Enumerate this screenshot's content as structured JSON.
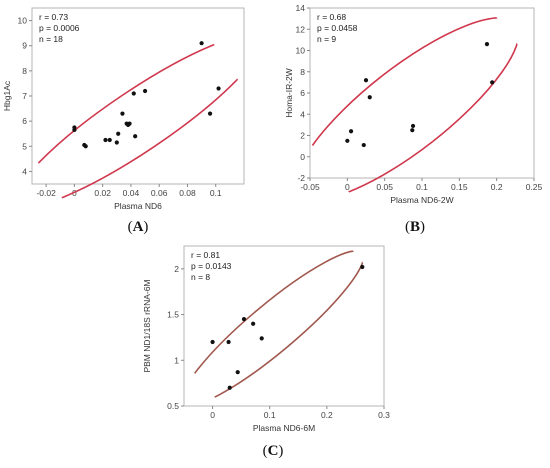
{
  "chart_data": [
    {
      "id": "A",
      "type": "scatter",
      "caption": "A",
      "xlabel": "Plasma ND6",
      "ylabel": "Hbg1Ac",
      "xlim": [
        -0.03,
        0.12
      ],
      "ylim": [
        3.5,
        10.5
      ],
      "xticks": [
        -0.02,
        0,
        0.02,
        0.04,
        0.06,
        0.08,
        0.1
      ],
      "xticklabels": [
        "-0.02",
        "0",
        "0.02",
        "0.04",
        "0.06",
        "0.08",
        "0.1"
      ],
      "yticks": [
        4,
        5,
        6,
        7,
        8,
        9,
        10
      ],
      "yticklabels": [
        "4",
        "5",
        "6",
        "7",
        "8",
        "9",
        "10"
      ],
      "stats": [
        "r = 0.73",
        "p = 0.0006",
        "n = 18"
      ],
      "ellipse_color": "#d0384e",
      "ellipse": {
        "cx": 0.045,
        "cy": 6.0,
        "rx": 0.104,
        "ry": 1.2,
        "angle_deg": 34
      },
      "points": [
        {
          "x": 0.0,
          "y": 5.75
        },
        {
          "x": 0.0,
          "y": 5.65
        },
        {
          "x": 0.007,
          "y": 5.05
        },
        {
          "x": 0.008,
          "y": 5.0
        },
        {
          "x": 0.022,
          "y": 5.25
        },
        {
          "x": 0.025,
          "y": 5.25
        },
        {
          "x": 0.03,
          "y": 5.15
        },
        {
          "x": 0.031,
          "y": 5.5
        },
        {
          "x": 0.034,
          "y": 6.3
        },
        {
          "x": 0.037,
          "y": 5.9
        },
        {
          "x": 0.039,
          "y": 5.9
        },
        {
          "x": 0.042,
          "y": 7.1
        },
        {
          "x": 0.043,
          "y": 5.4
        },
        {
          "x": 0.05,
          "y": 7.2
        },
        {
          "x": 0.09,
          "y": 9.1
        },
        {
          "x": 0.096,
          "y": 6.3
        },
        {
          "x": 0.102,
          "y": 7.3
        },
        {
          "x": 0.038,
          "y": 5.85
        }
      ]
    },
    {
      "id": "B",
      "type": "scatter",
      "caption": "B",
      "xlabel": "Plasma ND6-2W",
      "ylabel": "Homa-IR-2W",
      "xlim": [
        -0.05,
        0.25
      ],
      "ylim": [
        -2,
        14
      ],
      "xticks": [
        -0.05,
        0,
        0.05,
        0.1,
        0.15,
        0.2,
        0.25
      ],
      "xticklabels": [
        "-0.05",
        "0",
        "0.05",
        "0.1",
        "0.15",
        "0.2",
        "0.25"
      ],
      "yticks": [
        -2,
        0,
        2,
        4,
        6,
        8,
        10,
        12,
        14
      ],
      "yticklabels": [
        "-2",
        "0",
        "2",
        "4",
        "6",
        "8",
        "10",
        "12",
        "14"
      ],
      "stats": [
        "r = 0.68",
        "p = 0.0458",
        "n = 9"
      ],
      "ellipse_color": "#d0384e",
      "ellipse": {
        "cx": 0.08,
        "cy": 4.5,
        "rx": 0.185,
        "ry": 3.9,
        "angle_deg": 38
      },
      "points": [
        {
          "x": 0.0,
          "y": 1.5
        },
        {
          "x": 0.005,
          "y": 2.4
        },
        {
          "x": 0.022,
          "y": 1.1
        },
        {
          "x": 0.025,
          "y": 7.2
        },
        {
          "x": 0.03,
          "y": 5.6
        },
        {
          "x": 0.087,
          "y": 2.5
        },
        {
          "x": 0.088,
          "y": 2.9
        },
        {
          "x": 0.187,
          "y": 10.6
        },
        {
          "x": 0.194,
          "y": 7.0
        }
      ]
    },
    {
      "id": "C",
      "type": "scatter",
      "caption": "C",
      "xlabel": "Plasma ND6-6M",
      "ylabel": "PBM ND1/18S rRNA-6M",
      "xlim": [
        -0.05,
        0.3
      ],
      "ylim": [
        0.5,
        2.25
      ],
      "xticks": [
        0,
        0.1,
        0.2,
        0.3
      ],
      "xticklabels": [
        "0",
        "0.1",
        "0.2",
        "0.3"
      ],
      "yticks": [
        0.5,
        1,
        1.5,
        2
      ],
      "yticklabels": [
        "0.5",
        "1",
        "1.5",
        "2"
      ],
      "stats": [
        "r = 0.81",
        "p = 0.0143",
        "n = 8"
      ],
      "ellipse_color": "#a0584e",
      "ellipse": {
        "cx": 0.105,
        "cy": 1.35,
        "rx": 0.205,
        "ry": 0.26,
        "angle_deg": 40
      },
      "points": [
        {
          "x": 0.0,
          "y": 1.2
        },
        {
          "x": 0.028,
          "y": 1.2
        },
        {
          "x": 0.03,
          "y": 0.7
        },
        {
          "x": 0.044,
          "y": 0.87
        },
        {
          "x": 0.055,
          "y": 1.45
        },
        {
          "x": 0.071,
          "y": 1.4
        },
        {
          "x": 0.086,
          "y": 1.24
        },
        {
          "x": 0.262,
          "y": 2.02
        }
      ]
    }
  ]
}
